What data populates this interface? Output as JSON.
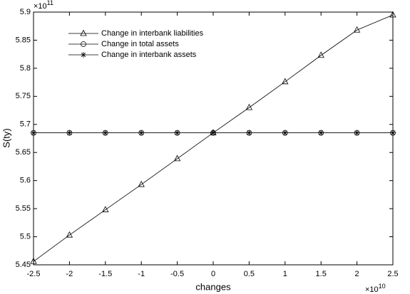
{
  "chart_data": {
    "type": "line",
    "xlabel": "changes",
    "ylabel": "S(ty)",
    "x_multiplier": "×10",
    "x_multiplier_exponent": "10",
    "y_multiplier": "×10",
    "y_multiplier_exponent": "11",
    "x": [
      -2.5,
      -2,
      -1.5,
      -1,
      -0.5,
      0,
      0.5,
      1,
      1.5,
      2,
      2.5
    ],
    "series": [
      {
        "name": "Change in interbank liabilities",
        "color": "#000000",
        "marker": "triangle",
        "values": [
          5.456,
          5.503,
          5.548,
          5.593,
          5.639,
          5.685,
          5.73,
          5.776,
          5.823,
          5.868,
          5.895
        ]
      },
      {
        "name": "Change in total assets",
        "color": "#000000",
        "marker": "circle",
        "values": [
          5.685,
          5.685,
          5.685,
          5.685,
          5.685,
          5.685,
          5.685,
          5.685,
          5.685,
          5.685,
          5.685
        ]
      },
      {
        "name": "Change in interbank assets",
        "color": "#000000",
        "marker": "asterisk",
        "values": [
          5.685,
          5.685,
          5.685,
          5.685,
          5.685,
          5.685,
          5.685,
          5.685,
          5.685,
          5.685,
          5.685
        ]
      }
    ],
    "xlim": [
      -2.5,
      2.5
    ],
    "xticks": [
      -2.5,
      -2,
      -1.5,
      -1,
      -0.5,
      0,
      0.5,
      1,
      1.5,
      2,
      2.5
    ],
    "ylim": [
      5.45,
      5.9
    ],
    "yticks": [
      5.45,
      5.5,
      5.55,
      5.6,
      5.65,
      5.7,
      5.75,
      5.8,
      5.85,
      5.9
    ],
    "grid": false,
    "legend": "upper-left"
  }
}
